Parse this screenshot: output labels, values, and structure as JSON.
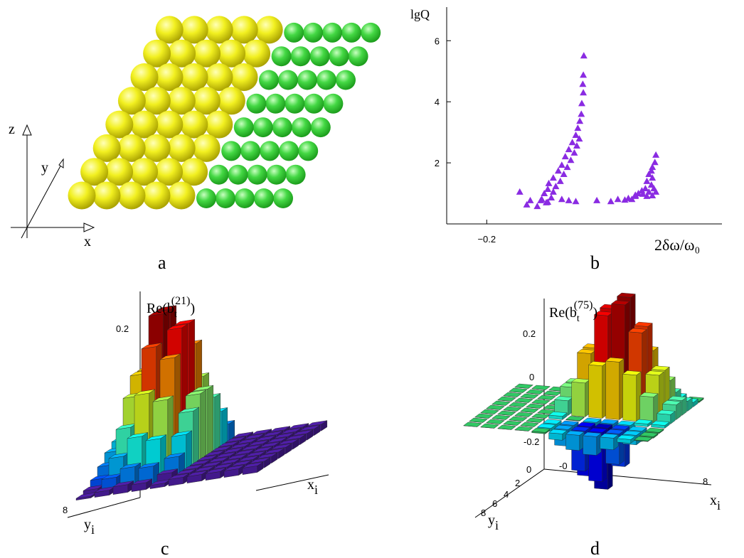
{
  "figure": {
    "panel_labels": [
      "a",
      "b",
      "c",
      "d"
    ],
    "panel_a": {
      "axis_labels": {
        "x": "x",
        "y": "y",
        "z": "z"
      }
    },
    "panel_c": {
      "zlabel": {
        "base": "Re(b",
        "sub": "t",
        "sup": "(21)",
        "close": ")"
      },
      "zticks": [
        "0.2"
      ],
      "yticks": [
        "8"
      ],
      "xlabel": {
        "base": "x",
        "sub": "i"
      },
      "ylabel": {
        "base": "y",
        "sub": "i"
      }
    },
    "panel_d": {
      "zlabel": {
        "base": "Re(b",
        "sub": "t",
        "sup": "(75)",
        "close": ")"
      },
      "zticks": [
        "0.2",
        "0",
        "-0.2"
      ],
      "yticks": [
        "0",
        "2",
        "4",
        "6",
        "8"
      ],
      "xticks": [
        "-0",
        "8"
      ],
      "xlabel": {
        "base": "x",
        "sub": "i"
      },
      "ylabel": {
        "base": "y",
        "sub": "i"
      }
    }
  },
  "chart_data": {
    "type": "scatter",
    "ylabel": "lgQ",
    "xlabel": "2δω/ω₀",
    "color": "#8a2be2",
    "marker": "triangle",
    "x": [
      -0.006,
      -0.007,
      -0.008,
      -0.007,
      -0.01,
      -0.011,
      -0.014,
      -0.018,
      -0.022,
      -0.015,
      -0.029,
      -0.02,
      -0.036,
      -0.025,
      -0.043,
      -0.032,
      -0.05,
      -0.039,
      -0.057,
      -0.046,
      -0.067,
      -0.053,
      -0.076,
      -0.062,
      -0.078,
      -0.067,
      -0.085,
      -0.071,
      -0.092,
      -0.081,
      -0.12,
      -0.099,
      -0.134,
      -0.113,
      -0.05,
      -0.036,
      -0.022,
      -0.09,
      -0.078,
      0.02,
      0.048,
      0.062,
      0.076,
      0.083,
      0.09,
      0.097,
      0.138,
      0.136,
      0.131,
      0.129,
      0.124,
      0.131,
      0.12,
      0.129,
      0.117,
      0.134,
      0.11,
      0.124,
      0.103,
      0.138,
      0.097,
      0.131,
      0.12,
      0.112
    ],
    "values": [
      5.51,
      4.88,
      4.58,
      4.3,
      3.95,
      3.6,
      3.37,
      3.14,
      2.91,
      2.79,
      2.67,
      2.56,
      2.44,
      2.33,
      2.21,
      2.09,
      1.93,
      1.86,
      1.74,
      1.63,
      1.51,
      1.4,
      1.33,
      1.23,
      1.14,
      1.05,
      1.0,
      0.86,
      0.77,
      0.7,
      0.63,
      0.58,
      1.05,
      0.77,
      0.81,
      0.77,
      0.74,
      0.81,
      0.72,
      0.77,
      0.74,
      0.81,
      0.79,
      0.84,
      0.81,
      0.91,
      2.26,
      2.02,
      1.86,
      1.74,
      1.63,
      1.51,
      1.4,
      1.28,
      1.16,
      1.16,
      1.09,
      1.05,
      1.0,
      1.05,
      0.95,
      0.93,
      0.91,
      0.98
    ],
    "xlim": [
      -0.28,
      0.27
    ],
    "ylim": [
      0,
      7.1
    ],
    "xticks": [
      {
        "value": -0.2,
        "label": "−0.2"
      }
    ],
    "yticks": [
      2,
      4,
      6
    ]
  }
}
